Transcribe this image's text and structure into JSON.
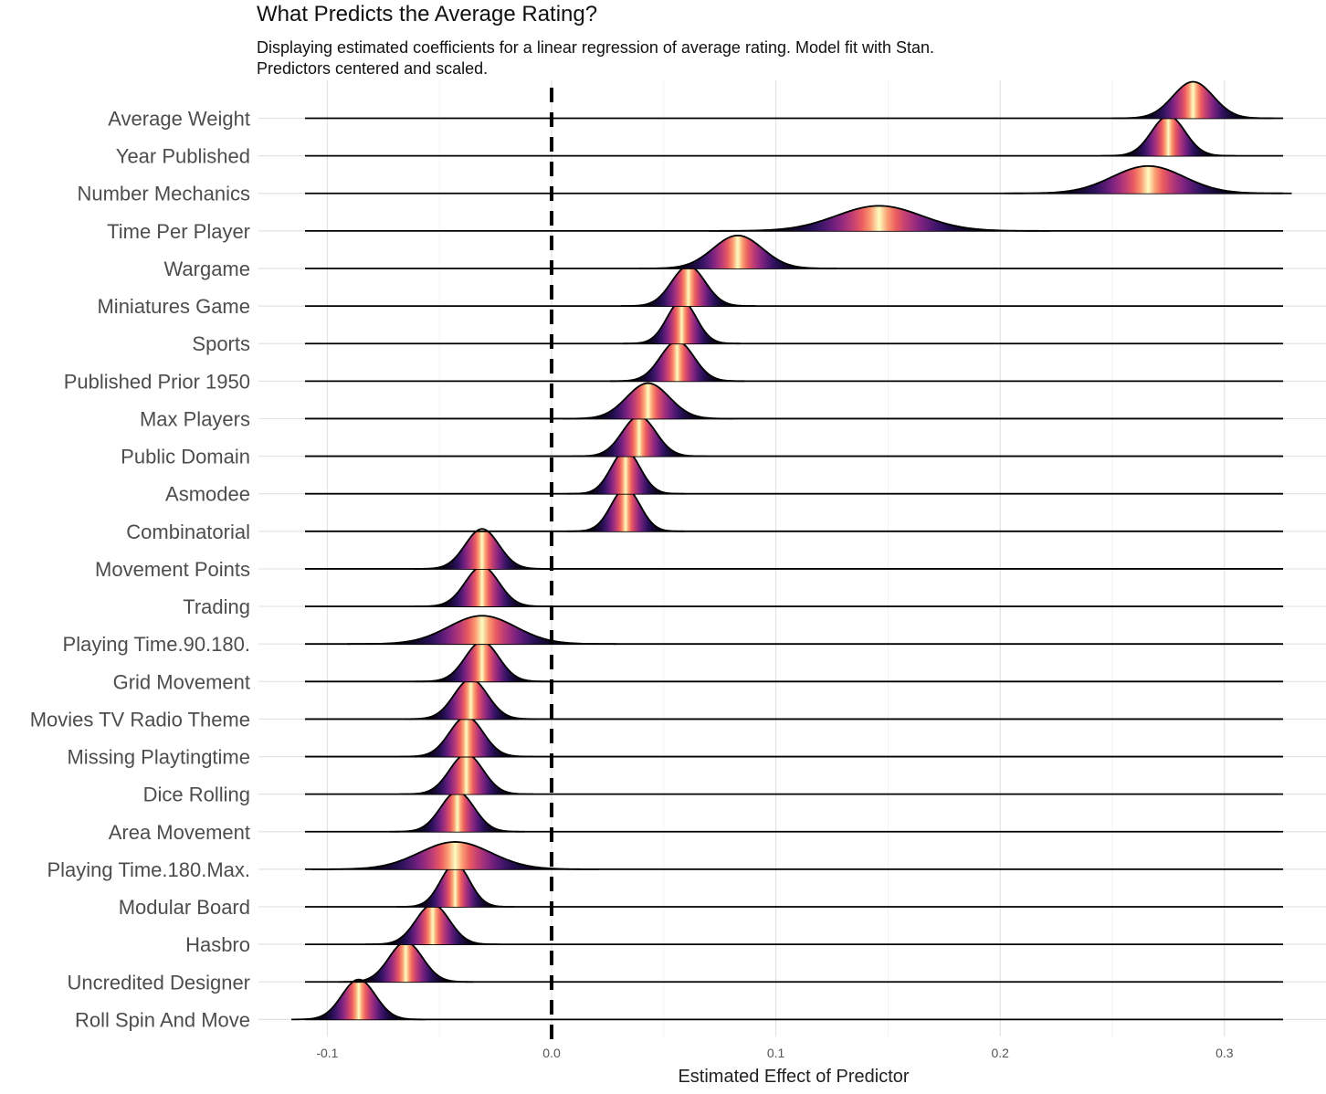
{
  "chart_data": {
    "type": "density-ridgeline",
    "title": "What Predicts the Average Rating?",
    "subtitle": "Displaying estimated coefficients for a linear regression of average rating. Model fit with Stan. Predictors centered and scaled.",
    "xlabel": "Estimated Effect of Predictor",
    "ylabel": "",
    "xlim": [
      -0.11,
      0.325
    ],
    "xticks": [
      -0.1,
      0.0,
      0.1,
      0.2,
      0.3
    ],
    "xtick_labels": [
      "-0.1",
      "0.0",
      "0.1",
      "0.2",
      "0.3"
    ],
    "reference_line": {
      "x": 0,
      "style": "dashed"
    },
    "grid": true,
    "fill_palette": "magma",
    "series": [
      {
        "name": "Average Weight",
        "mean": 0.286,
        "sd": 0.009
      },
      {
        "name": "Year Published",
        "mean": 0.275,
        "sd": 0.0075
      },
      {
        "name": "Number Mechanics",
        "mean": 0.266,
        "sd": 0.016
      },
      {
        "name": "Time Per Player",
        "mean": 0.146,
        "sd": 0.019
      },
      {
        "name": "Wargame",
        "mean": 0.083,
        "sd": 0.011
      },
      {
        "name": "Miniatures Game",
        "mean": 0.061,
        "sd": 0.0075
      },
      {
        "name": "Sports",
        "mean": 0.058,
        "sd": 0.0065
      },
      {
        "name": "Published Prior 1950",
        "mean": 0.056,
        "sd": 0.0075
      },
      {
        "name": "Max Players",
        "mean": 0.043,
        "sd": 0.0095
      },
      {
        "name": "Public Domain",
        "mean": 0.039,
        "sd": 0.0075
      },
      {
        "name": "Asmodee",
        "mean": 0.033,
        "sd": 0.0065
      },
      {
        "name": "Combinatorial",
        "mean": 0.033,
        "sd": 0.0065
      },
      {
        "name": "Movement Points",
        "mean": -0.031,
        "sd": 0.0075
      },
      {
        "name": "Trading",
        "mean": -0.031,
        "sd": 0.0075
      },
      {
        "name": "Playing Time.90.180.",
        "mean": -0.031,
        "sd": 0.015
      },
      {
        "name": "Grid Movement",
        "mean": -0.031,
        "sd": 0.0075
      },
      {
        "name": "Movies TV Radio Theme",
        "mean": -0.036,
        "sd": 0.0075
      },
      {
        "name": "Missing Playtingtime",
        "mean": -0.038,
        "sd": 0.0075
      },
      {
        "name": "Dice Rolling",
        "mean": -0.038,
        "sd": 0.0075
      },
      {
        "name": "Area Movement",
        "mean": -0.042,
        "sd": 0.0075
      },
      {
        "name": "Playing Time.180.Max.",
        "mean": -0.043,
        "sd": 0.016
      },
      {
        "name": "Modular Board",
        "mean": -0.043,
        "sd": 0.0065
      },
      {
        "name": "Hasbro",
        "mean": -0.053,
        "sd": 0.0075
      },
      {
        "name": "Uncredited Designer",
        "mean": -0.065,
        "sd": 0.0075
      },
      {
        "name": "Roll Spin And Move",
        "mean": -0.086,
        "sd": 0.0075
      }
    ]
  }
}
